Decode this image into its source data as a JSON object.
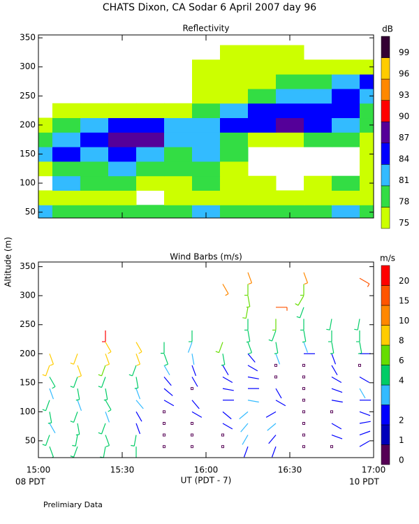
{
  "title": "CHATS Dixon, CA  Sodar    6 April 2007   day  96",
  "y_label": "Altitude (m)",
  "x_label": "UT  (PDT - 7)",
  "x_left_note": "08 PDT",
  "x_right_note": "10 PDT",
  "footer": "Prelimiary Data",
  "chart_data": [
    {
      "type": "contour",
      "title": "Reflectivity",
      "colorbar_title": "dB",
      "xlim": [
        900,
        1020
      ],
      "ylim": [
        40,
        355
      ],
      "yticks": [
        50,
        100,
        150,
        200,
        250,
        300,
        350
      ],
      "levels": [
        75,
        78,
        81,
        84,
        87,
        90,
        93,
        96,
        99
      ],
      "colorbar_ticks": [
        75,
        78,
        81,
        84,
        87,
        90,
        93,
        96,
        99
      ],
      "colors": [
        "#ccff00",
        "#33dd44",
        "#33bbff",
        "#0000ff",
        "#550099",
        "#ff0000",
        "#ff8800",
        "#ffcc00",
        "#330033"
      ],
      "x": [
        900,
        910,
        920,
        930,
        940,
        950,
        960,
        970,
        980,
        990,
        1000,
        1010,
        1020
      ],
      "y": [
        50,
        75,
        100,
        125,
        150,
        175,
        200,
        225,
        250,
        275,
        300,
        325
      ],
      "z": [
        [
          82,
          79,
          79,
          79,
          79,
          79,
          82,
          79,
          79,
          79,
          79,
          82,
          79
        ],
        [
          76,
          76,
          76,
          76,
          null,
          76,
          76,
          76,
          76,
          76,
          76,
          76,
          76
        ],
        [
          null,
          82,
          79,
          79,
          76,
          76,
          79,
          76,
          76,
          null,
          76,
          79,
          76
        ],
        [
          76,
          79,
          79,
          82,
          79,
          79,
          79,
          76,
          null,
          null,
          null,
          null,
          76
        ],
        [
          82,
          85,
          82,
          85,
          82,
          79,
          82,
          79,
          null,
          null,
          null,
          null,
          76
        ],
        [
          79,
          82,
          85,
          88,
          88,
          82,
          82,
          79,
          76,
          76,
          79,
          79,
          76
        ],
        [
          76,
          79,
          82,
          85,
          85,
          82,
          82,
          85,
          85,
          88,
          85,
          82,
          79
        ],
        [
          null,
          76,
          76,
          76,
          76,
          76,
          79,
          82,
          85,
          85,
          85,
          85,
          79
        ],
        [
          null,
          null,
          null,
          null,
          null,
          null,
          76,
          76,
          79,
          82,
          82,
          85,
          82
        ],
        [
          null,
          null,
          null,
          null,
          null,
          null,
          76,
          76,
          76,
          79,
          79,
          82,
          85
        ],
        [
          null,
          null,
          null,
          null,
          null,
          null,
          76,
          76,
          76,
          76,
          76,
          76,
          76
        ],
        [
          null,
          null,
          null,
          null,
          null,
          null,
          null,
          76,
          76,
          76,
          null,
          null,
          null
        ]
      ]
    },
    {
      "type": "barbs",
      "title": "Wind Barbs (m/s)",
      "colorbar_title": "m/s",
      "xlim": [
        900,
        1020
      ],
      "ylim": [
        21,
        358
      ],
      "yticks": [
        50,
        100,
        150,
        200,
        250,
        300,
        350
      ],
      "xticks": [
        {
          "value": 900,
          "label": "15:00"
        },
        {
          "value": 930,
          "label": "15:30"
        },
        {
          "value": 960,
          "label": "16:00"
        },
        {
          "value": 990,
          "label": "16:30"
        },
        {
          "value": 1020,
          "label": "17:00"
        }
      ],
      "levels": [
        0,
        1,
        2,
        3,
        4,
        6,
        8,
        10,
        15,
        20
      ],
      "colorbar_ticks": [
        0,
        1,
        2,
        4,
        6,
        8,
        10,
        15,
        20
      ],
      "colors": [
        "#550055",
        "#0000bb",
        "#0000ff",
        "#33bbff",
        "#00cc66",
        "#66dd00",
        "#ffcc00",
        "#ff8800",
        "#ff5500",
        "#ff0000"
      ],
      "barbs": [
        {
          "x": 904,
          "alt": [
            40,
            60,
            80,
            100,
            120,
            140,
            160,
            180,
            200
          ],
          "speed": [
            5,
            5,
            3,
            4,
            4,
            3,
            4,
            8,
            8
          ],
          "dir": [
            160,
            200,
            150,
            170,
            200,
            160,
            150,
            200,
            160
          ]
        },
        {
          "x": 914,
          "alt": [
            40,
            60,
            80,
            100,
            120,
            140,
            160,
            180,
            200
          ],
          "speed": [
            5,
            5,
            4,
            4,
            3,
            4,
            5,
            8,
            8
          ],
          "dir": [
            200,
            190,
            170,
            200,
            160,
            170,
            200,
            160,
            200
          ]
        },
        {
          "x": 924,
          "alt": [
            40,
            60,
            80,
            100,
            120,
            140,
            160,
            180,
            200,
            220,
            240
          ],
          "speed": [
            5,
            4,
            4,
            3,
            4,
            5,
            5,
            6,
            8,
            8,
            20
          ],
          "dir": [
            190,
            160,
            200,
            160,
            150,
            170,
            200,
            200,
            160,
            150,
            180
          ]
        },
        {
          "x": 935,
          "alt": [
            40,
            60,
            80,
            100,
            120,
            140,
            160,
            180,
            200,
            220
          ],
          "speed": [
            5,
            4,
            2,
            2,
            3,
            3,
            4,
            5,
            8,
            8
          ],
          "dir": [
            180,
            190,
            160,
            150,
            140,
            160,
            170,
            200,
            160,
            150
          ]
        },
        {
          "x": 945,
          "alt": [
            40,
            60,
            80,
            100,
            120,
            140,
            160,
            180,
            200,
            220
          ],
          "speed": [
            0,
            0,
            0,
            0,
            2,
            2,
            2,
            3,
            4,
            5
          ],
          "dir": [
            0,
            0,
            0,
            0,
            120,
            130,
            140,
            150,
            160,
            180
          ]
        },
        {
          "x": 955,
          "alt": [
            40,
            60,
            80,
            100,
            120,
            140,
            160,
            180,
            200,
            220,
            240
          ],
          "speed": [
            0,
            0,
            0,
            2,
            2,
            0,
            2,
            2,
            3,
            3,
            5
          ],
          "dir": [
            0,
            0,
            0,
            120,
            140,
            0,
            150,
            160,
            170,
            200,
            180
          ]
        },
        {
          "x": 966,
          "alt": [
            40,
            60,
            80,
            100,
            120,
            140,
            160,
            180,
            200,
            220,
            320
          ],
          "speed": [
            0,
            0,
            2,
            2,
            2,
            2,
            2,
            2,
            4,
            6,
            10
          ],
          "dir": [
            0,
            0,
            120,
            130,
            90,
            100,
            120,
            150,
            170,
            200,
            150
          ]
        },
        {
          "x": 975,
          "alt": [
            40,
            60,
            80,
            100,
            120,
            140,
            160,
            180,
            200,
            220,
            240,
            260,
            280,
            300,
            320,
            340
          ],
          "speed": [
            2,
            3,
            3,
            3,
            3,
            2,
            2,
            2,
            2,
            4,
            4,
            4,
            6,
            6,
            6,
            10
          ],
          "dir": [
            200,
            210,
            220,
            230,
            100,
            90,
            100,
            120,
            140,
            160,
            170,
            180,
            190,
            170,
            180,
            160
          ]
        },
        {
          "x": 985,
          "alt": [
            40,
            60,
            80,
            100,
            120,
            140,
            160,
            180,
            200,
            220,
            240,
            260,
            280
          ],
          "speed": [
            2,
            2,
            3,
            2,
            2,
            2,
            0,
            0,
            3,
            4,
            4,
            6,
            15
          ],
          "dir": [
            200,
            220,
            230,
            240,
            120,
            150,
            0,
            0,
            160,
            170,
            200,
            180,
            90
          ]
        },
        {
          "x": 995,
          "alt": [
            40,
            60,
            80,
            100,
            120,
            140,
            160,
            180,
            200,
            220,
            240,
            260,
            280,
            300,
            320,
            340
          ],
          "speed": [
            0,
            0,
            0,
            0,
            0,
            0,
            0,
            0,
            2,
            3,
            4,
            4,
            4,
            6,
            6,
            10
          ],
          "dir": [
            0,
            0,
            0,
            0,
            0,
            0,
            0,
            0,
            90,
            160,
            170,
            180,
            200,
            210,
            180,
            160
          ]
        },
        {
          "x": 1005,
          "alt": [
            40,
            60,
            80,
            100,
            120,
            140,
            160,
            180,
            200,
            220,
            240,
            260
          ],
          "speed": [
            0,
            2,
            2,
            0,
            2,
            2,
            2,
            2,
            2,
            4,
            4,
            4
          ],
          "dir": [
            0,
            110,
            120,
            0,
            100,
            110,
            120,
            150,
            160,
            170,
            180,
            190
          ]
        },
        {
          "x": 1015,
          "alt": [
            40,
            60,
            80,
            100,
            120,
            140,
            160,
            180,
            200,
            220,
            240,
            260,
            330
          ],
          "speed": [
            2,
            2,
            2,
            2,
            2,
            3,
            2,
            0,
            2,
            4,
            4,
            4,
            15
          ],
          "dir": [
            60,
            70,
            80,
            110,
            90,
            150,
            120,
            0,
            90,
            170,
            180,
            190,
            120
          ]
        }
      ]
    }
  ]
}
